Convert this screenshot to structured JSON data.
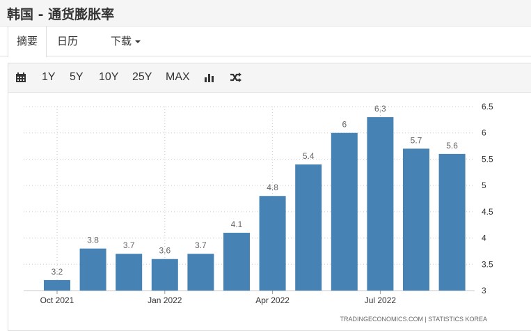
{
  "header": {
    "title": "韩国 - 通货膨胀率"
  },
  "tabs": [
    {
      "label": "摘要"
    },
    {
      "label": "日历"
    },
    {
      "label": "下载"
    }
  ],
  "toolbar": {
    "icons": [
      "calendar-icon",
      "bar-chart-icon",
      "shuffle-icon"
    ],
    "ranges": [
      "1Y",
      "5Y",
      "10Y",
      "25Y",
      "MAX"
    ]
  },
  "colors": {
    "bar": "#4682b4",
    "grid": "#c8c8c8",
    "accent": "#4682b4"
  },
  "source_text": "TRADINGECONOMICS.COM  |  STATISTICS KOREA",
  "chart_data": {
    "type": "bar",
    "categories": [
      "2021-10",
      "2021-11",
      "2021-12",
      "2022-01",
      "2022-02",
      "2022-03",
      "2022-04",
      "2022-05",
      "2022-06",
      "2022-07",
      "2022-08",
      "2022-09"
    ],
    "values": [
      3.2,
      3.8,
      3.7,
      3.6,
      3.7,
      4.1,
      4.8,
      5.4,
      6,
      6.3,
      5.7,
      5.6
    ],
    "data_labels": [
      "3.2",
      "3.8",
      "3.7",
      "3.6",
      "3.7",
      "4.1",
      "4.8",
      "5.4",
      "6",
      "6.3",
      "5.7",
      "5.6"
    ],
    "x_tick_labels": [
      {
        "index": 0,
        "label": "Oct 2021"
      },
      {
        "index": 3,
        "label": "Jan 2022"
      },
      {
        "index": 6,
        "label": "Apr 2022"
      },
      {
        "index": 9,
        "label": "Jul 2022"
      }
    ],
    "y_ticks": [
      3,
      3.5,
      4,
      4.5,
      5,
      5.5,
      6,
      6.5
    ],
    "y_tick_labels": [
      "3",
      "3.5",
      "4",
      "4.5",
      "5",
      "5.5",
      "6",
      "6.5"
    ],
    "ylim": [
      3,
      6.5
    ],
    "yaxis_position": "right",
    "grid": true,
    "title": "",
    "xlabel": "",
    "ylabel": ""
  }
}
